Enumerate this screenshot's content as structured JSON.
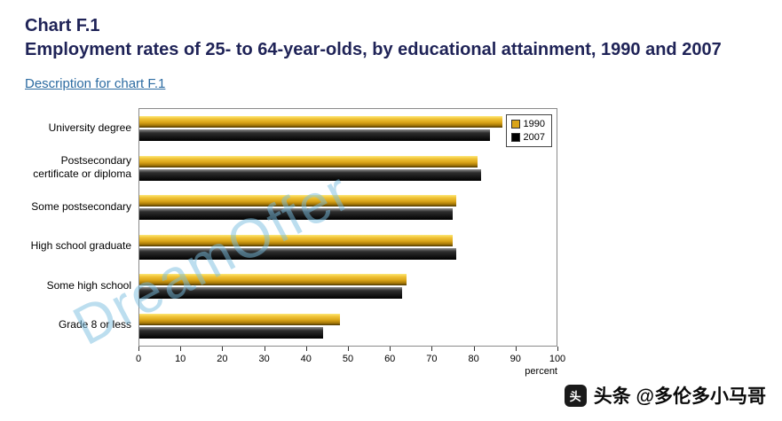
{
  "header": {
    "chart_label": "Chart F.1",
    "title_line": "Employment rates of 25- to 64-year-olds, by educational attainment, 1990 and 2007",
    "description_link": "Description for chart F.1"
  },
  "chart_data": {
    "type": "bar",
    "orientation": "horizontal",
    "title": "Employment rates of 25- to 64-year-olds, by educational attainment, 1990 and 2007",
    "categories": [
      "University degree",
      "Postsecondary certificate or diploma",
      "Some postsecondary",
      "High school graduate",
      "Some high school",
      "Grade 8 or less"
    ],
    "series": [
      {
        "name": "1990",
        "color": "#d9a418",
        "values": [
          87,
          81,
          76,
          75,
          64,
          48
        ]
      },
      {
        "name": "2007",
        "color": "#000000",
        "values": [
          84,
          82,
          75,
          76,
          63,
          44
        ]
      }
    ],
    "xlabel": "percent",
    "xlim": [
      0,
      100
    ],
    "xticks": [
      0,
      10,
      20,
      30,
      40,
      50,
      60,
      70,
      80,
      90,
      100
    ],
    "legend_position": "top-right",
    "grid": false
  },
  "watermark": "DreamOffer",
  "footer": {
    "credit": "头条 @多伦多小马哥"
  }
}
